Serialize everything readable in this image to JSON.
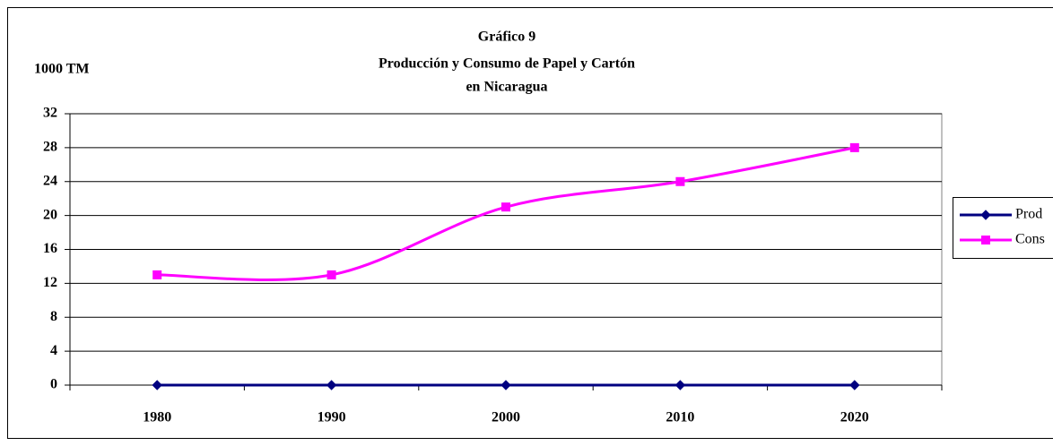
{
  "chart_data": {
    "type": "line",
    "title": "Gráfico 9",
    "subtitle": [
      "Producción y Consumo de Papel y Cartón",
      "en Nicaragua"
    ],
    "y_label": "1000 TM",
    "categories": [
      "1980",
      "1990",
      "2000",
      "2010",
      "2020"
    ],
    "series": [
      {
        "name": "Prod",
        "color": "#000080",
        "marker": "diamond",
        "values": [
          0,
          0,
          0,
          0,
          0
        ]
      },
      {
        "name": "Cons",
        "color": "#ff00ff",
        "marker": "square",
        "values": [
          13,
          13,
          21,
          24,
          28
        ]
      }
    ],
    "ylim": [
      0,
      32
    ],
    "yticks": [
      0,
      4,
      8,
      12,
      16,
      20,
      24,
      28,
      32
    ],
    "grid": true,
    "smooth": true,
    "legend": "right"
  }
}
